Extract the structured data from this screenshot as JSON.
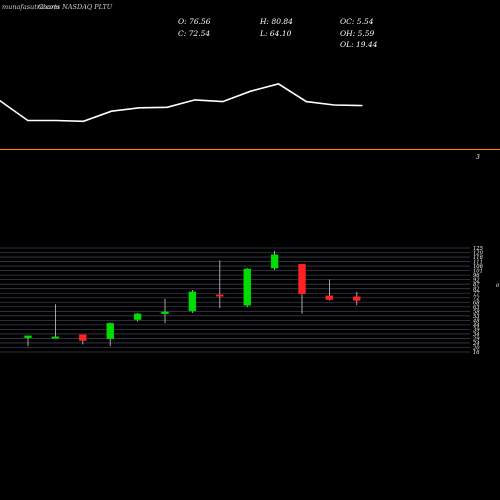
{
  "header": {
    "watermark": "munafasutra.com",
    "ticker": "Charts NASDAQ PLTU",
    "open": "O: 76.56",
    "close": "C: 72.54",
    "high": "H: 80.84",
    "low": "L: 64.10",
    "oc": "OC: 5.54",
    "oh": "OH: 5.59",
    "ol": "OL: 19.44"
  },
  "mid_label": "3",
  "side_label": "0",
  "colors": {
    "background": "#000000",
    "up": "#00dd00",
    "down": "#ff2222",
    "neutral_line": "#ffffff",
    "orange_line": "#ff8c00",
    "grid": "#3a3a4e"
  },
  "chart_data": [
    {
      "type": "line",
      "series": [
        {
          "values": [
            75.5,
            68.5,
            68.5,
            68.2,
            71.8,
            73.0,
            73.2,
            75.8,
            75.2,
            78.9,
            81.5,
            75.2,
            74.0,
            73.8
          ]
        }
      ],
      "ylim": [
        58,
        90
      ],
      "reference_line": {
        "color": "orange"
      }
    },
    {
      "type": "candlestick",
      "ticks": [
        "125",
        "120",
        "116",
        "111",
        "106",
        "101",
        "96",
        "92",
        "87",
        "82",
        "77",
        "72",
        "68",
        "63",
        "58",
        "53",
        "48",
        "44",
        "39",
        "34",
        "29",
        "24",
        "20",
        "16"
      ],
      "ylim": [
        16,
        125
      ],
      "candles": [
        {
          "o": 31,
          "h": 33,
          "l": 22,
          "c": 33
        },
        {
          "o": 32,
          "h": 66,
          "l": 30,
          "c": 32
        },
        {
          "o": 34,
          "h": 34,
          "l": 24,
          "c": 28
        },
        {
          "o": 30,
          "h": 47,
          "l": 22,
          "c": 46
        },
        {
          "o": 50,
          "h": 57,
          "l": 48,
          "c": 56
        },
        {
          "o": 56,
          "h": 72,
          "l": 46,
          "c": 58
        },
        {
          "o": 59,
          "h": 81,
          "l": 57,
          "c": 79
        },
        {
          "o": 76,
          "h": 112,
          "l": 62,
          "c": 75
        },
        {
          "o": 65,
          "h": 104,
          "l": 63,
          "c": 103
        },
        {
          "o": 104,
          "h": 122,
          "l": 102,
          "c": 118
        },
        {
          "o": 108,
          "h": 108,
          "l": 56,
          "c": 77
        },
        {
          "o": 75,
          "h": 92,
          "l": 70,
          "c": 71
        },
        {
          "o": 74,
          "h": 79,
          "l": 65,
          "c": 70
        }
      ]
    }
  ]
}
